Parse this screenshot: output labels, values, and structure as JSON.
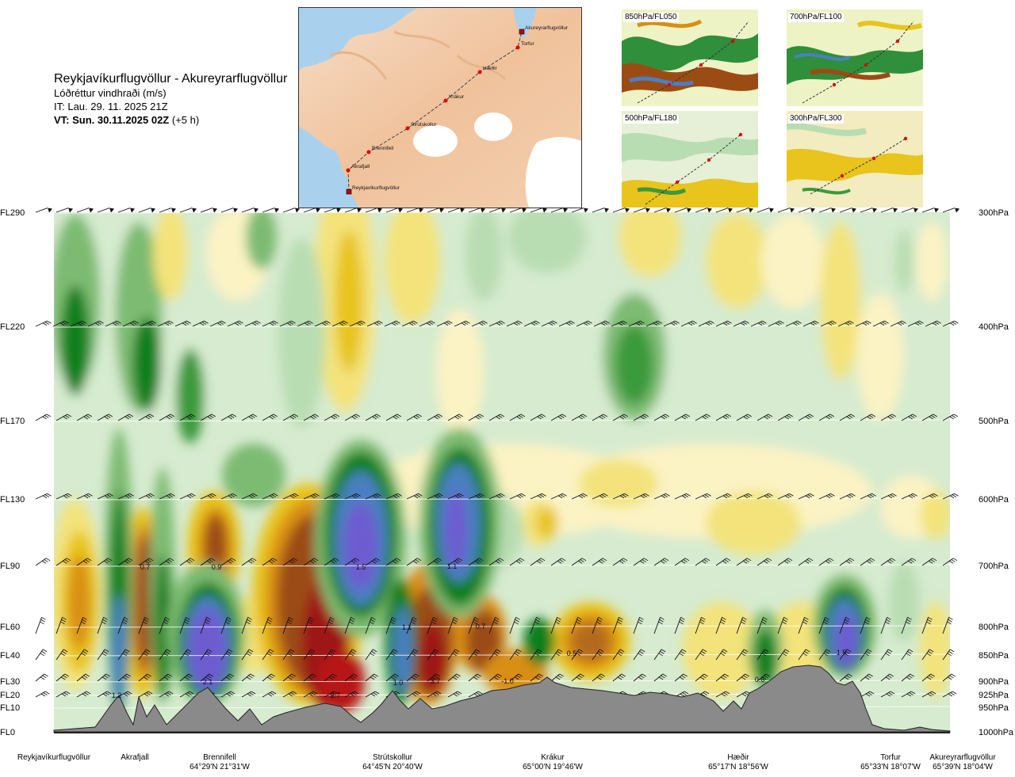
{
  "title": {
    "route": "Reykjavíkurflugvöllur - Akureyrarflugvöllur",
    "parameter": "Lóðréttur vindhraði (m/s)",
    "issue_time": "IT: Lau. 29. 11. 2025 21Z",
    "valid_label": "VT: Sun. 30.11.2025 02Z",
    "valid_offset": "(+5 h)"
  },
  "map": {
    "points": [
      {
        "name": "Akureyrarflugvöllur",
        "type": "airport"
      },
      {
        "name": "Torfur",
        "type": "waypoint"
      },
      {
        "name": "Hæðir",
        "type": "waypoint"
      },
      {
        "name": "Krákur",
        "type": "waypoint"
      },
      {
        "name": "Strútskollur",
        "type": "waypoint"
      },
      {
        "name": "Brennifell",
        "type": "waypoint"
      },
      {
        "name": "Akrafjall",
        "type": "waypoint"
      },
      {
        "name": "Reykjavíkurflugvöllur",
        "type": "airport"
      }
    ],
    "colors": {
      "land": "#f2c9a5",
      "sea": "#a9d1ee",
      "glacier": "#ffffff",
      "route": "#444444",
      "waypoint": "#e00000"
    }
  },
  "panels": [
    {
      "label": "850hPa/FL050"
    },
    {
      "label": "700hPa/FL100"
    },
    {
      "label": "500hPa/FL180"
    },
    {
      "label": "300hPa/FL300"
    }
  ],
  "chart_data": {
    "type": "heatmap",
    "title": "Lóðréttur vindhraði (m/s)",
    "y_levels": [
      {
        "fl": "FL290",
        "hpa": "300hPa"
      },
      {
        "fl": "FL220",
        "hpa": "400hPa"
      },
      {
        "fl": "FL170",
        "hpa": "500hPa"
      },
      {
        "fl": "FL130",
        "hpa": "600hPa"
      },
      {
        "fl": "FL90",
        "hpa": "700hPa"
      },
      {
        "fl": "FL60",
        "hpa": "800hPa"
      },
      {
        "fl": "FL40",
        "hpa": "850hPa"
      },
      {
        "fl": "FL30",
        "hpa": "900hPa"
      },
      {
        "fl": "FL20",
        "hpa": "925hPa"
      },
      {
        "fl": "FL10",
        "hpa": "950hPa"
      },
      {
        "fl": "FL0",
        "hpa": "1000hPa"
      }
    ],
    "waypoints": [
      {
        "name": "Reykjavíkurflugvöllur",
        "coord": ""
      },
      {
        "name": "Akrafjall",
        "coord": ""
      },
      {
        "name": "Brennifell",
        "coord": "64°29'N 21°31'W"
      },
      {
        "name": "Strútskollur",
        "coord": "64°45'N 20°40'W"
      },
      {
        "name": "Krákur",
        "coord": "65°00'N 19°46'W"
      },
      {
        "name": "Hæðir",
        "coord": "65°17'N 18°56'W"
      },
      {
        "name": "Torfur",
        "coord": "65°33'N 18°07'W"
      },
      {
        "name": "Akureyrarflugvöllur",
        "coord": "65°39'N 18°04'W"
      }
    ],
    "contour_labels": [
      "1.2",
      "0.7",
      "0.9",
      "2.1",
      "2.7",
      "1.5",
      "1.1",
      "1.0",
      "1.1",
      "3.7",
      "0.7",
      "-1.0",
      "0.5",
      "0.6",
      "1.5"
    ],
    "colors": {
      "strong_up": "#6d5bd0",
      "up_3": "#4a7fc1",
      "up_2": "#0b7f1a",
      "up_1": "#3a9a3a",
      "weak_up": "#7dbb72",
      "very_weak_up": "#b9ddb3",
      "neutral_up": "#d6ebcf",
      "neutral_down": "#fbf3c4",
      "weak_down": "#f3e37a",
      "down_1": "#e8c41c",
      "down_2": "#d98e12",
      "down_3": "#9b4c14",
      "strong_down": "#9e1212",
      "terrain": "#8a8a8a"
    }
  }
}
